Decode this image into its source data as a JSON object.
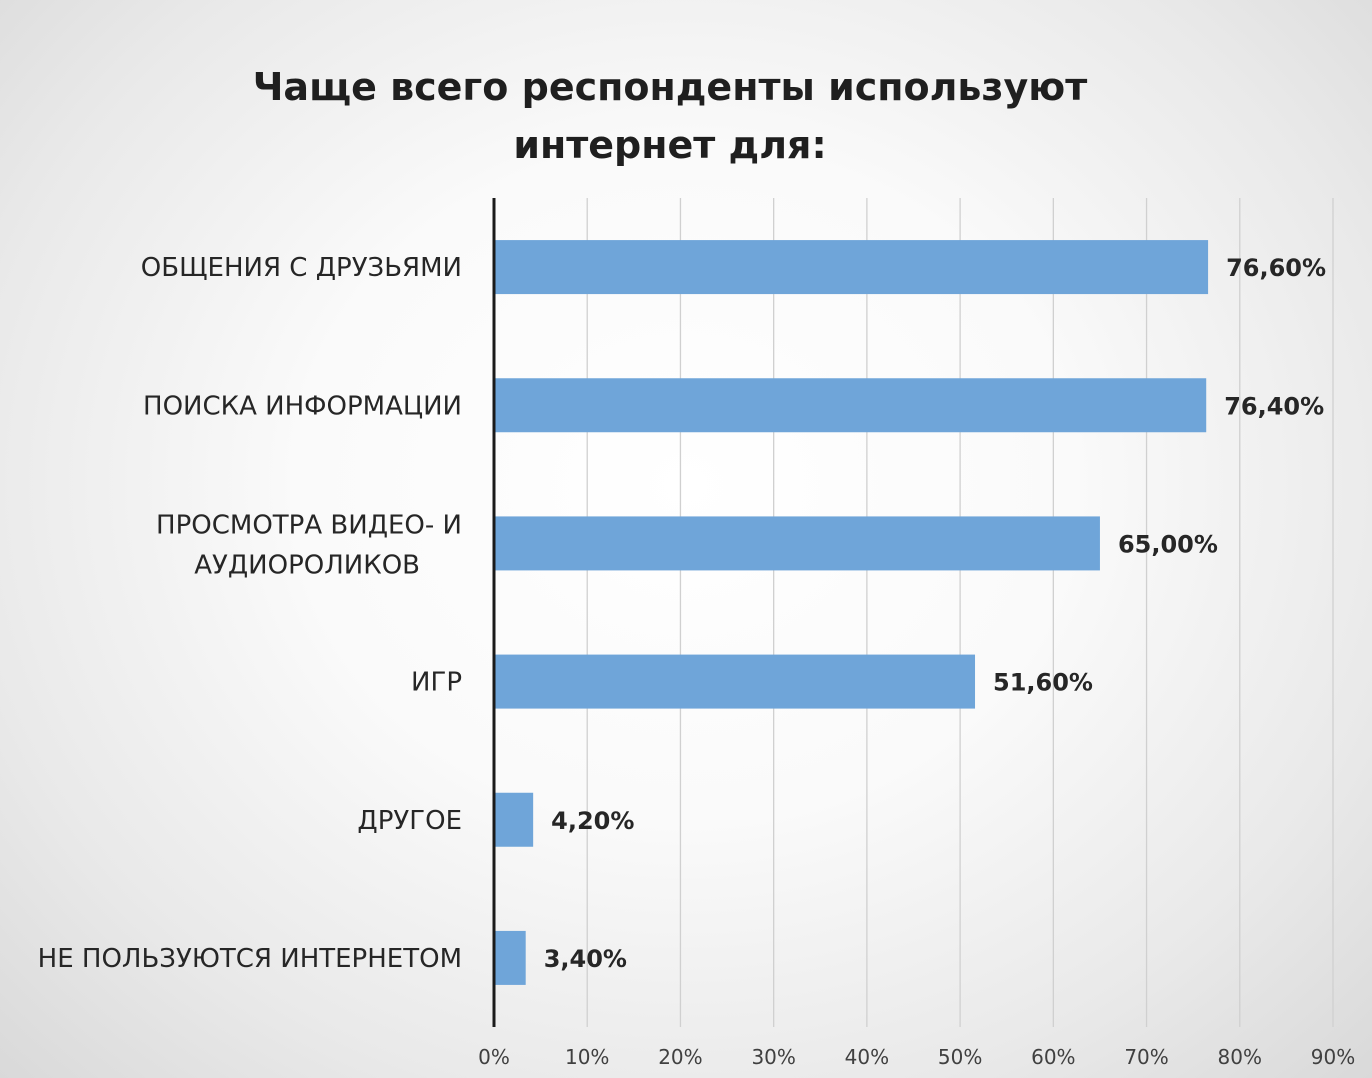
{
  "chart_data": {
    "type": "bar",
    "orientation": "horizontal",
    "title": "Чаще всего респонденты используют интернет для:",
    "categories": [
      "ОБЩЕНИЯ С ДРУЗЬЯМИ",
      "ПОИСКА ИНФОРМАЦИИ",
      "ПРОСМОТРА ВИДЕО- И АУДИОРОЛИКОВ",
      "ИГР",
      "ДРУГОЕ",
      "НЕ ПОЛЬЗУЮТСЯ ИНТЕРНЕТОМ"
    ],
    "values": [
      76.6,
      76.4,
      65.0,
      51.6,
      4.2,
      3.4
    ],
    "value_labels": [
      "76,60%",
      "76,40%",
      "65,00%",
      "51,60%",
      "4,20%",
      "3,40%"
    ],
    "xlim": [
      0,
      90
    ],
    "x_ticks": [
      "0%",
      "10%",
      "20%",
      "30%",
      "40%",
      "50%",
      "60%",
      "70%",
      "80%",
      "90%"
    ],
    "xlabel": "",
    "ylabel": "",
    "grid": true,
    "legend": "none",
    "colors": {
      "bar": "#6fa5d9",
      "gridline": "#d0d0d0",
      "axis": "#1a1a1a"
    }
  }
}
